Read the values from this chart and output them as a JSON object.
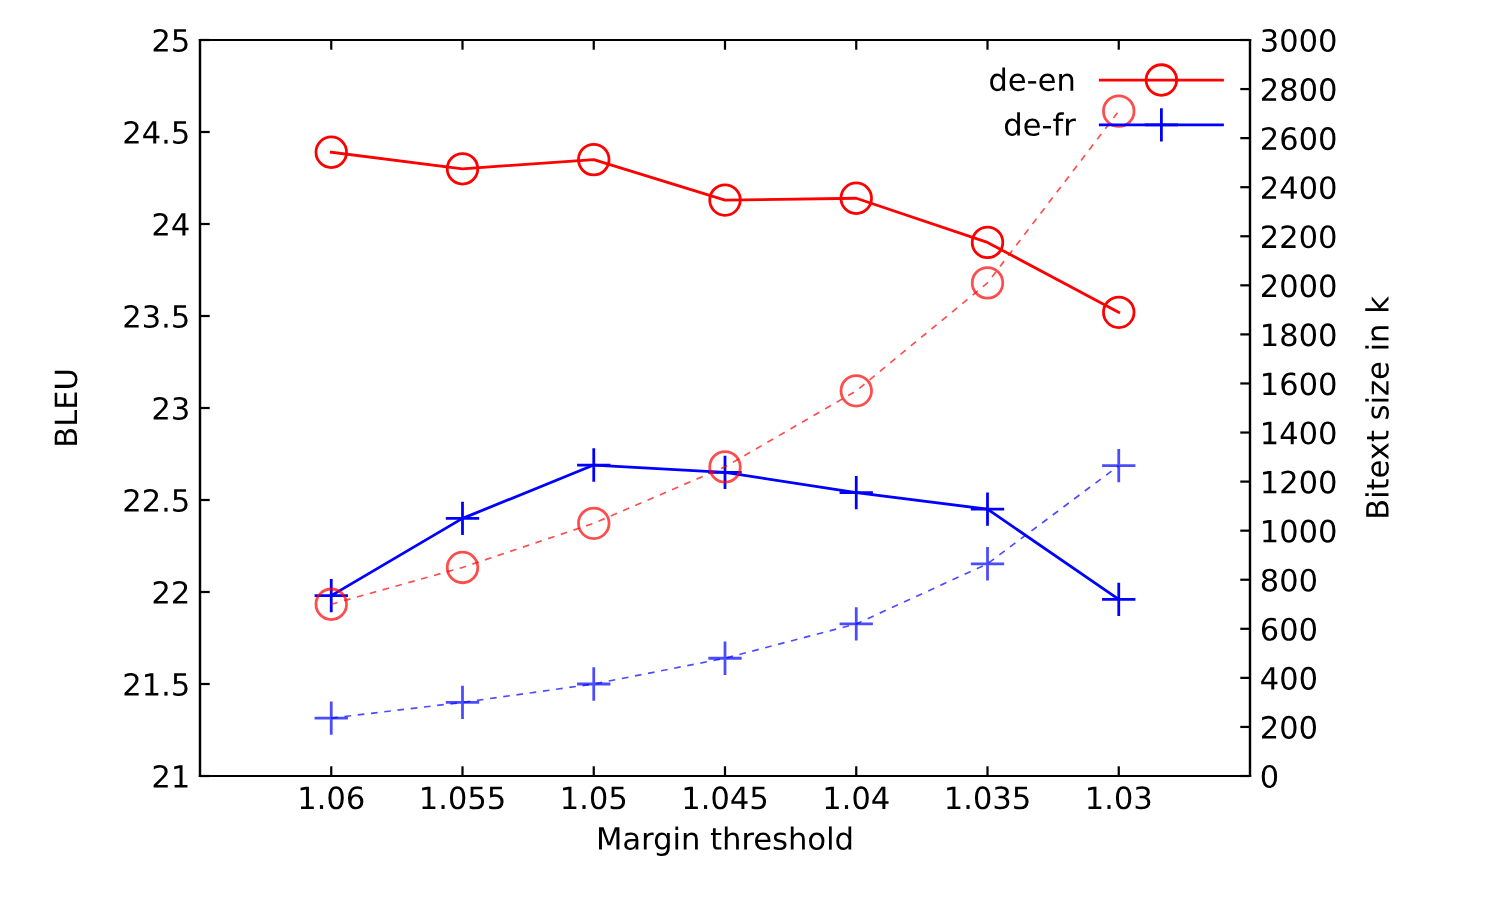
{
  "chart_data": {
    "type": "line",
    "xlabel": "Margin threshold",
    "ylabel": "BLEU",
    "y2label": "Bitext size in k",
    "x": [
      1.06,
      1.055,
      1.05,
      1.045,
      1.04,
      1.035,
      1.03
    ],
    "series": [
      {
        "name": "de-en",
        "color": "#ff0000",
        "marker": "circle",
        "line_style": "solid",
        "values": [
          24.39,
          24.3,
          24.35,
          24.13,
          24.14,
          23.9,
          23.52
        ]
      },
      {
        "name": "de-fr",
        "color": "#0000ff",
        "marker": "cross",
        "line_style": "solid",
        "values": [
          21.98,
          22.4,
          22.69,
          22.65,
          22.54,
          22.45,
          21.96
        ]
      },
      {
        "color": "#ff0000",
        "marker": "circle",
        "line_style": "dashed",
        "axis": "y2",
        "values": [
          700,
          850,
          1030,
          1260,
          1570,
          2010,
          2710
        ]
      },
      {
        "color": "#0000ff",
        "marker": "cross",
        "line_style": "dashed",
        "axis": "y2",
        "values": [
          236,
          300,
          375,
          480,
          620,
          865,
          1265
        ]
      }
    ],
    "xlim": [
      1.065,
      1.025
    ],
    "xticks": [
      {
        "value": 1.06,
        "label": "1.06"
      },
      {
        "value": 1.055,
        "label": "1.055"
      },
      {
        "value": 1.05,
        "label": "1.05"
      },
      {
        "value": 1.045,
        "label": "1.045"
      },
      {
        "value": 1.04,
        "label": "1.04"
      },
      {
        "value": 1.035,
        "label": "1.035"
      },
      {
        "value": 1.03,
        "label": "1.03"
      }
    ],
    "ylim": [
      21,
      25
    ],
    "yticks": [
      21,
      21.5,
      22,
      22.5,
      23,
      23.5,
      24,
      24.5,
      25
    ],
    "y2lim": [
      0,
      3000
    ],
    "y2ticks": [
      0,
      200,
      400,
      600,
      800,
      1000,
      1200,
      1400,
      1600,
      1800,
      2000,
      2200,
      2400,
      2600,
      2800,
      3000
    ],
    "grid": false,
    "legend": "top right"
  }
}
